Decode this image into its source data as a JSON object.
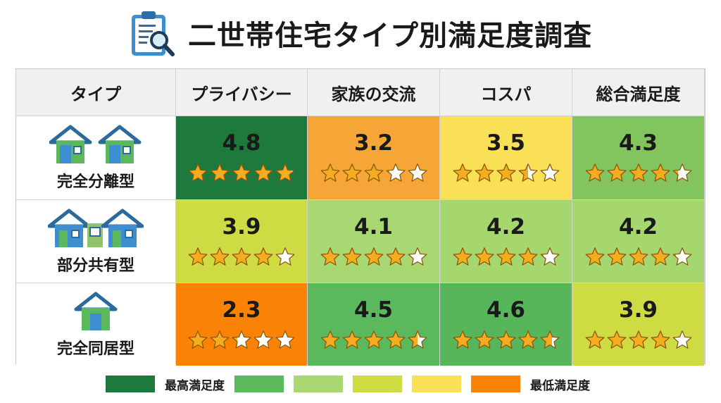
{
  "title": "二世帯住宅タイプ別満足度調査",
  "icons": {
    "title": "clipboard-magnifier-icon"
  },
  "chart_data": {
    "type": "table",
    "title": "二世帯住宅タイプ別満足度調査",
    "row_header": "タイプ",
    "columns": [
      "プライバシー",
      "家族の交流",
      "コスパ",
      "総合満足度"
    ],
    "rows": [
      {
        "type": "完全分離型",
        "icon": "two-separate-houses-icon",
        "values": [
          4.8,
          3.2,
          3.5,
          4.3
        ]
      },
      {
        "type": "部分共有型",
        "icon": "connected-houses-icon",
        "values": [
          3.9,
          4.1,
          4.2,
          4.2
        ]
      },
      {
        "type": "完全同居型",
        "icon": "single-house-icon",
        "values": [
          2.3,
          4.5,
          4.6,
          3.9
        ]
      }
    ],
    "max_stars": 5,
    "colors": {
      "4.8": "#1e7a3c",
      "4.6": "#57b55a",
      "4.5": "#5cb85c",
      "4.3": "#82c55e",
      "4.2": "#a6d66e",
      "4.1": "#a9d873",
      "3.9": "#cfdb42",
      "3.5": "#fae057",
      "3.2": "#f5a636",
      "2.3": "#fa8205"
    },
    "legend": {
      "high_label": "最高満足度",
      "low_label": "最低満足度",
      "swatches": [
        "#1e7a3c",
        "#5cb85c",
        "#a9d873",
        "#cfdb42",
        "#fae057",
        "#fa8205"
      ]
    }
  }
}
